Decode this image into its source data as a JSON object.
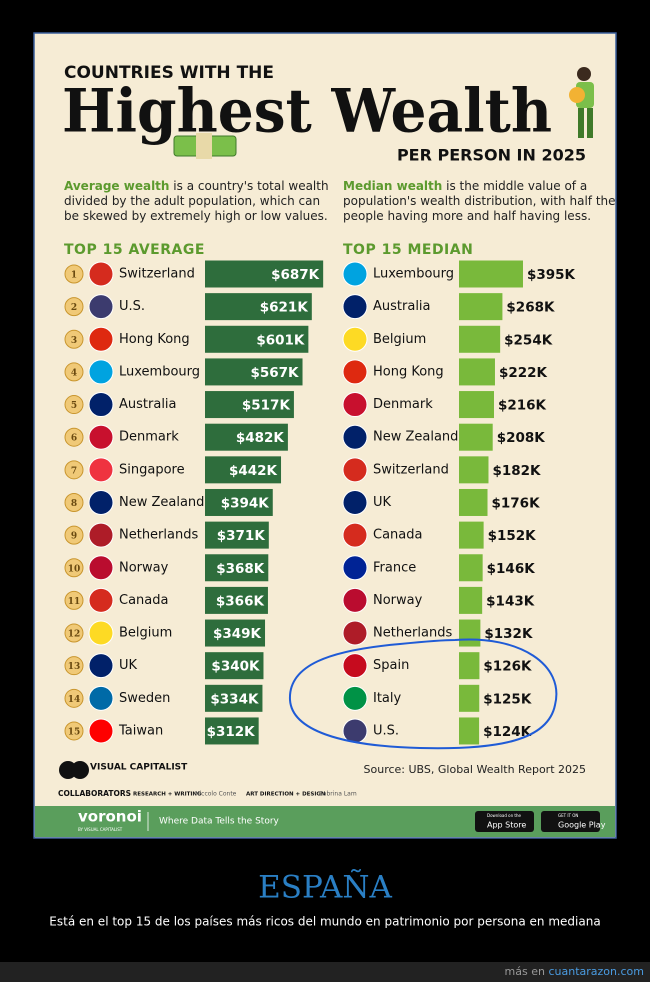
{
  "header": {
    "kicker": "COUNTRIES WITH THE",
    "title": "Highest Wealth",
    "subtitle": "PER PERSON IN 2025"
  },
  "intro": [
    {
      "term": "Average wealth",
      "lines": [
        "is a country's total wealth",
        "divided by the adult population, which can",
        "be skewed by extremely high or low values."
      ]
    },
    {
      "term": "Median wealth",
      "lines": [
        "is the middle value of a",
        "population's wealth distribution, with half the",
        "people having more and half having less."
      ]
    }
  ],
  "chart_data": [
    {
      "type": "bar",
      "orientation": "horizontal",
      "title": "TOP 15 AVERAGE",
      "categories": [
        "Switzerland",
        "U.S.",
        "Hong Kong",
        "Luxembourg",
        "Australia",
        "Denmark",
        "Singapore",
        "New Zealand",
        "Netherlands",
        "Norway",
        "Canada",
        "Belgium",
        "UK",
        "Sweden",
        "Taiwan"
      ],
      "ranks": [
        1,
        2,
        3,
        4,
        5,
        6,
        7,
        8,
        9,
        10,
        11,
        12,
        13,
        14,
        15
      ],
      "values": [
        687,
        621,
        601,
        567,
        517,
        482,
        442,
        394,
        371,
        368,
        366,
        349,
        340,
        334,
        312
      ],
      "value_labels": [
        "$687K",
        "$621K",
        "$601K",
        "$567K",
        "$517K",
        "$482K",
        "$442K",
        "$394K",
        "$371K",
        "$368K",
        "$366K",
        "$349K",
        "$340K",
        "$334K",
        "$312K"
      ],
      "color": "#2e6d3c"
    },
    {
      "type": "bar",
      "orientation": "horizontal",
      "title": "TOP 15 MEDIAN",
      "categories": [
        "Luxembourg",
        "Australia",
        "Belgium",
        "Hong Kong",
        "Denmark",
        "New Zealand",
        "Switzerland",
        "UK",
        "Canada",
        "France",
        "Norway",
        "Netherlands",
        "Spain",
        "Italy",
        "U.S."
      ],
      "values": [
        395,
        268,
        254,
        222,
        216,
        208,
        182,
        176,
        152,
        146,
        143,
        132,
        126,
        125,
        124
      ],
      "value_labels": [
        "$395K",
        "$268K",
        "$254K",
        "$222K",
        "$216K",
        "$208K",
        "$182K",
        "$176K",
        "$152K",
        "$146K",
        "$143K",
        "$132K",
        "$126K",
        "$125K",
        "$124K"
      ],
      "color": "#79b93b"
    }
  ],
  "footer": {
    "brand": "VISUAL CAPITALIST",
    "source": "Source: UBS, Global Wealth Report 2025",
    "collaborators": "COLLABORATORS",
    "role1": "RESEARCH + WRITING",
    "name1": "Niccolo Conte",
    "role2": "ART DIRECTION + DESIGN",
    "name2": "Sabrina Lam",
    "voronoi": "voronoi",
    "voronoi_by": "BY VISUAL CAPITALIST",
    "tagline": "Where Data Tells the Story",
    "appstore_small": "Download on the",
    "appstore": "App Store",
    "gplay_small": "GET IT ON",
    "gplay": "Google Play"
  },
  "caption": {
    "title": "ESPAÑA",
    "text": "Está en el top 15 de los países más ricos del mundo en patrimonio por persona en mediana"
  },
  "site": {
    "prefix": "más en",
    "link": "cuantarazon.com"
  }
}
